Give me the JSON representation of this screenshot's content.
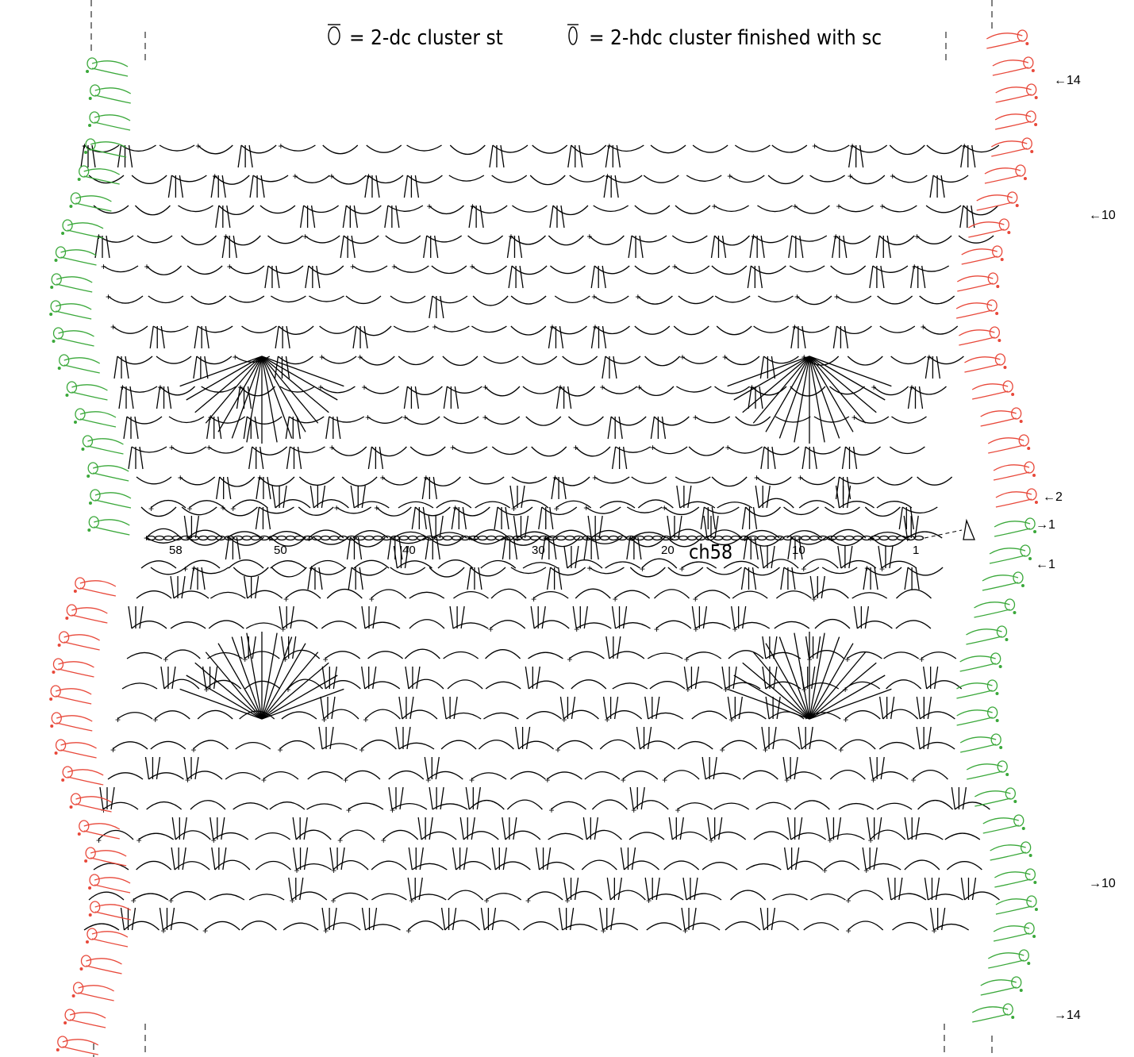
{
  "legend": [
    {
      "text": "= 2-dc cluster st"
    },
    {
      "text": "= 2-hdc cluster finished with sc"
    }
  ],
  "row_labels": [
    "←14",
    "←10",
    "←2",
    "→1",
    "←1",
    "→10",
    "→14"
  ],
  "stitch_numbers": [
    "58",
    "50",
    "40",
    "30",
    "20",
    "10",
    "1"
  ],
  "foundation_label": "ch58"
}
